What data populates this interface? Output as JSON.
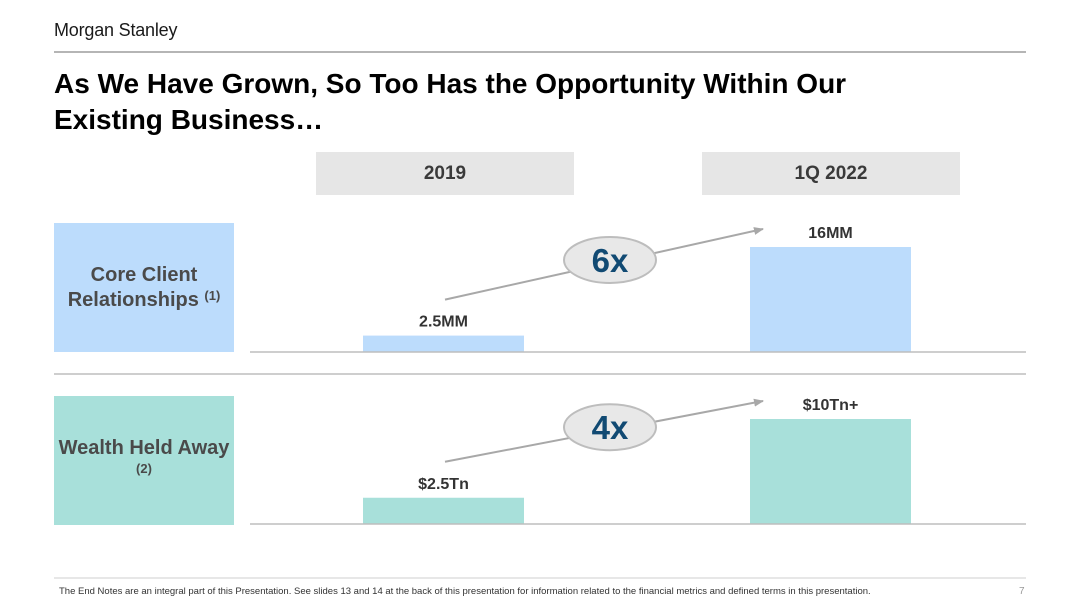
{
  "header": {
    "logo": "Morgan Stanley",
    "title": "As We Have Grown, So Too Has the Opportunity Within Our Existing Business…"
  },
  "columns": [
    "2019",
    "1Q 2022"
  ],
  "colors": {
    "core_fill": "#bcdcfc",
    "wealth_fill": "#a8e0da",
    "multiplier_text": "#114a73",
    "ellipse_fill": "#e8e8e8",
    "ellipse_stroke": "#bdbdbd",
    "arrow": "#a8a8a8"
  },
  "chart_data": [
    {
      "type": "bar",
      "label": "Core Client Relationships",
      "footnote": "(1)",
      "categories": [
        "2019",
        "1Q 2022"
      ],
      "values": [
        2.5,
        16
      ],
      "value_labels": [
        "2.5MM",
        "16MM"
      ],
      "unit": "MM",
      "multiplier": "6x"
    },
    {
      "type": "bar",
      "label": "Wealth Held Away",
      "footnote": "(2)",
      "categories": [
        "2019",
        "1Q 2022"
      ],
      "values": [
        2.5,
        10
      ],
      "value_labels": [
        "$2.5Tn",
        "$10Tn+"
      ],
      "unit": "Tn",
      "multiplier": "4x"
    }
  ],
  "footer": {
    "note": "The End Notes are an integral part of this Presentation. See slides 13 and 14 at the back of this presentation for information related to the financial metrics and defined terms in this presentation.",
    "page": "7"
  }
}
